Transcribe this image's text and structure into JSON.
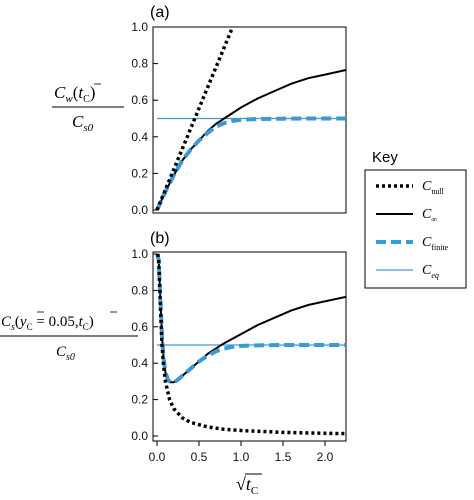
{
  "colors": {
    "null": "#000000",
    "inf": "#000000",
    "finite": "#3a9ad9",
    "eq": "#3a9ad9"
  },
  "key": {
    "title": "Key",
    "items": [
      {
        "id": "null",
        "main": "C",
        "sub": "null",
        "style": "dotted"
      },
      {
        "id": "inf",
        "main": "C",
        "sub": "∞",
        "style": "solid"
      },
      {
        "id": "finite",
        "main": "C",
        "sub": "finite",
        "style": "dashed"
      },
      {
        "id": "eq",
        "main": "C",
        "sub": "eq",
        "style": "thin"
      }
    ]
  },
  "xaxis": {
    "label_root": "√",
    "label_main": "t",
    "label_sub": "C"
  },
  "chart_data": [
    {
      "panel": "(a)",
      "type": "line",
      "ylabel": {
        "num_main": "C",
        "num_sub": "w",
        "num_arg": "t",
        "num_arg_sub": "C",
        "den_main": "C",
        "den_sub": "s0"
      },
      "xlim": [
        0,
        2.25
      ],
      "ylim": [
        0,
        1.0
      ],
      "xticks": [
        "0.0",
        "0.5",
        "1.0",
        "1.5",
        "2.0"
      ],
      "yticks": [
        "0.0",
        "0.2",
        "0.4",
        "0.6",
        "0.8",
        "1.0"
      ],
      "grid": false,
      "series": [
        {
          "id": "null",
          "name": "C_null",
          "x": [
            0,
            0.2,
            0.4,
            0.6,
            0.75,
            0.9
          ],
          "y": [
            0,
            0.222,
            0.444,
            0.667,
            0.833,
            1.0
          ]
        },
        {
          "id": "inf",
          "name": "C_∞",
          "x": [
            0,
            0.1,
            0.2,
            0.3,
            0.4,
            0.5,
            0.6,
            0.7,
            0.8,
            1.0,
            1.2,
            1.4,
            1.6,
            1.8,
            2.0,
            2.25
          ],
          "y": [
            0,
            0.1,
            0.19,
            0.27,
            0.33,
            0.38,
            0.43,
            0.47,
            0.5,
            0.56,
            0.61,
            0.65,
            0.69,
            0.72,
            0.74,
            0.765
          ]
        },
        {
          "id": "finite",
          "name": "C_finite",
          "x": [
            0,
            0.1,
            0.2,
            0.3,
            0.4,
            0.5,
            0.6,
            0.7,
            0.8,
            0.9,
            1.0,
            1.2,
            1.5,
            1.8,
            2.0,
            2.25
          ],
          "y": [
            0,
            0.1,
            0.19,
            0.27,
            0.33,
            0.38,
            0.42,
            0.455,
            0.475,
            0.487,
            0.493,
            0.497,
            0.499,
            0.5,
            0.5,
            0.5
          ]
        },
        {
          "id": "eq",
          "name": "C_eq",
          "x": [
            0,
            2.25
          ],
          "y": [
            0.5,
            0.5
          ]
        }
      ]
    },
    {
      "panel": "(b)",
      "type": "line",
      "ylabel": {
        "num_main": "C",
        "num_sub": "s",
        "num_arg1": "y",
        "num_arg1_sub": "C",
        "num_arg_mid": " = 0.05,",
        "num_arg2": "t",
        "num_arg2_sub": "C",
        "den_main": "C",
        "den_sub": "s0"
      },
      "xlim": [
        0,
        2.25
      ],
      "ylim": [
        0,
        1.0
      ],
      "xticks": [
        "0.0",
        "0.5",
        "1.0",
        "1.5",
        "2.0"
      ],
      "yticks": [
        "0.0",
        "0.2",
        "0.4",
        "0.6",
        "0.8",
        "1.0"
      ],
      "grid": false,
      "series": [
        {
          "id": "null",
          "name": "C_null",
          "x": [
            0.01,
            0.02,
            0.04,
            0.06,
            0.08,
            0.1,
            0.15,
            0.2,
            0.3,
            0.4,
            0.6,
            0.8,
            1.0,
            1.5,
            2.0,
            2.25
          ],
          "y": [
            1.0,
            0.97,
            0.72,
            0.5,
            0.38,
            0.3,
            0.2,
            0.15,
            0.1,
            0.075,
            0.05,
            0.037,
            0.03,
            0.02,
            0.015,
            0.013
          ]
        },
        {
          "id": "inf",
          "name": "C_∞",
          "x": [
            0.0,
            0.02,
            0.04,
            0.06,
            0.08,
            0.1,
            0.13,
            0.16,
            0.2,
            0.25,
            0.3,
            0.4,
            0.5,
            0.6,
            0.7,
            0.8,
            1.0,
            1.2,
            1.4,
            1.6,
            1.8,
            2.0,
            2.25
          ],
          "y": [
            1.0,
            0.97,
            0.75,
            0.55,
            0.42,
            0.35,
            0.31,
            0.295,
            0.295,
            0.31,
            0.33,
            0.37,
            0.41,
            0.45,
            0.48,
            0.51,
            0.56,
            0.61,
            0.65,
            0.69,
            0.72,
            0.74,
            0.765
          ]
        },
        {
          "id": "finite",
          "name": "C_finite",
          "x": [
            0.0,
            0.02,
            0.04,
            0.06,
            0.08,
            0.1,
            0.13,
            0.16,
            0.2,
            0.25,
            0.3,
            0.4,
            0.5,
            0.6,
            0.7,
            0.8,
            0.9,
            1.0,
            1.2,
            1.5,
            1.8,
            2.0,
            2.25
          ],
          "y": [
            1.0,
            0.97,
            0.75,
            0.55,
            0.42,
            0.35,
            0.31,
            0.295,
            0.295,
            0.31,
            0.33,
            0.37,
            0.41,
            0.44,
            0.465,
            0.48,
            0.49,
            0.495,
            0.498,
            0.5,
            0.5,
            0.5,
            0.5
          ]
        },
        {
          "id": "eq",
          "name": "C_eq",
          "x": [
            0,
            2.25
          ],
          "y": [
            0.5,
            0.5
          ]
        }
      ]
    }
  ]
}
